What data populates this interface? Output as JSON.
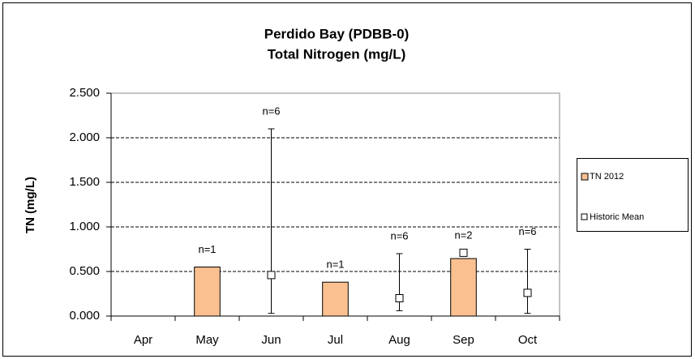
{
  "chart_data": {
    "type": "bar",
    "title": "Perdido Bay (PDBB-0)",
    "subtitle": "Total Nitrogen (mg/L)",
    "y_label": "TN (mg/L)",
    "categories": [
      "Apr",
      "May",
      "Jun",
      "Jul",
      "Aug",
      "Sep",
      "Oct"
    ],
    "series": [
      {
        "name": "TN 2012",
        "type": "bar",
        "color": "#fac090",
        "values": [
          null,
          0.55,
          null,
          0.38,
          null,
          0.645,
          null
        ]
      },
      {
        "name": "Historic Mean",
        "type": "marker",
        "color": "#ffffff",
        "values": [
          null,
          null,
          0.46,
          null,
          0.2,
          0.71,
          0.26
        ],
        "lower": [
          null,
          null,
          0.03,
          null,
          0.06,
          null,
          0.03
        ],
        "upper": [
          null,
          null,
          2.1,
          null,
          0.7,
          null,
          0.75
        ]
      }
    ],
    "annotations": [
      null,
      "n=1",
      "n=6",
      "n=1",
      "n=6",
      "n=2",
      "n=6"
    ],
    "ylim": [
      0,
      2.5
    ],
    "yticks": [
      {
        "value": 0,
        "label": "0.000"
      },
      {
        "value": 0.5,
        "label": "0.500"
      },
      {
        "value": 1,
        "label": "1.000"
      },
      {
        "value": 1.5,
        "label": "1.500"
      },
      {
        "value": 2,
        "label": "2.000"
      },
      {
        "value": 2.5,
        "label": "2.500"
      }
    ],
    "grid": true,
    "legend": "right"
  }
}
